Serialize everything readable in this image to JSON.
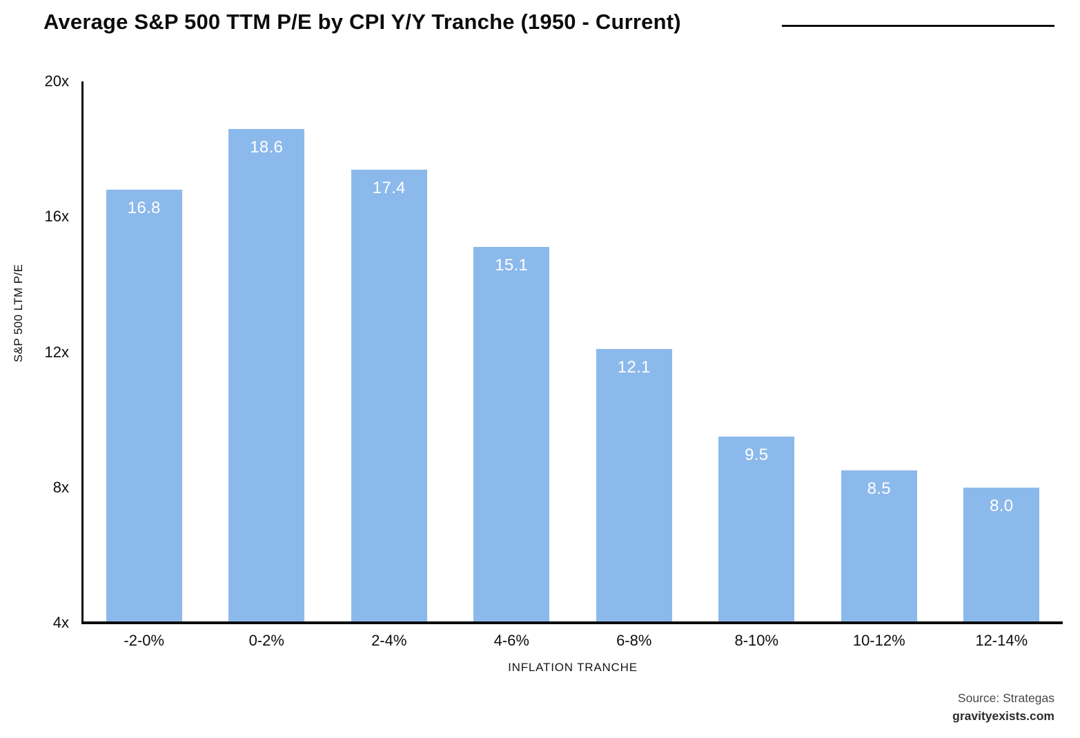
{
  "title": "Average S&P 500 TTM P/E by CPI Y/Y Tranche (1950 - Current)",
  "source": {
    "line1": "Source: Strategas",
    "line2": "gravityexists.com"
  },
  "chart_data": {
    "type": "bar",
    "title": "Average S&P 500 TTM P/E by CPI Y/Y Tranche (1950 - Current)",
    "categories": [
      "-2-0%",
      "0-2%",
      "2-4%",
      "4-6%",
      "6-8%",
      "8-10%",
      "10-12%",
      "12-14%"
    ],
    "values": [
      16.8,
      18.6,
      17.4,
      15.1,
      12.1,
      9.5,
      8.5,
      8.0
    ],
    "xlabel": "INFLATION TRANCHE",
    "ylabel": "S&P 500 LTM P/E",
    "ylim": [
      4,
      20
    ],
    "yticks": [
      {
        "value": 4,
        "label": "4x"
      },
      {
        "value": 8,
        "label": "8x"
      },
      {
        "value": 12,
        "label": "12x"
      },
      {
        "value": 16,
        "label": "16x"
      },
      {
        "value": 20,
        "label": "20x"
      }
    ],
    "grid": false,
    "legend": "none",
    "bar_color": "#8CB9EB",
    "value_label_color": "#ffffff",
    "axis_color": "#0c0c0c"
  }
}
